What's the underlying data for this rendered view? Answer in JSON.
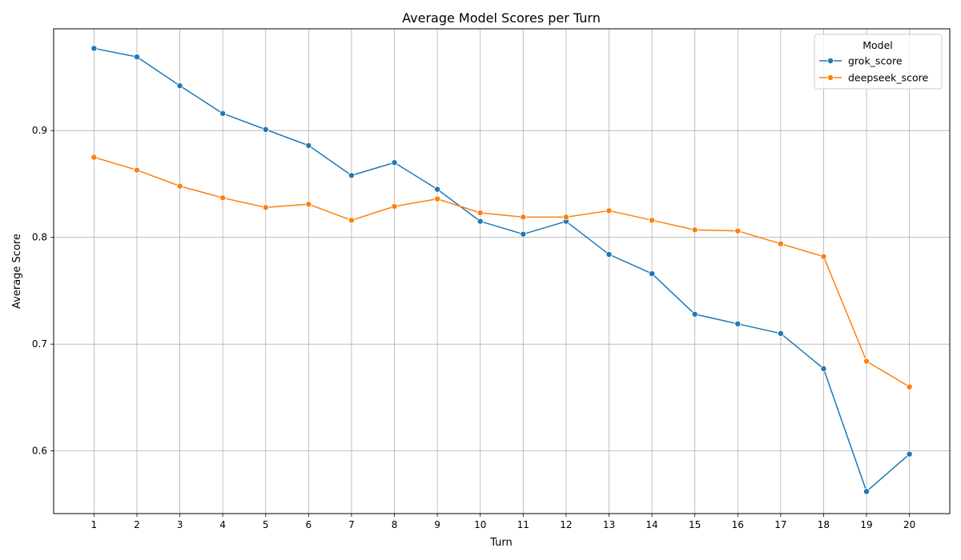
{
  "chart_data": {
    "type": "line",
    "title": "Average Model Scores per Turn",
    "xlabel": "Turn",
    "ylabel": "Average Score",
    "x": [
      1,
      2,
      3,
      4,
      5,
      6,
      7,
      8,
      9,
      10,
      11,
      12,
      13,
      14,
      15,
      16,
      17,
      18,
      19,
      20
    ],
    "xlim": [
      0.06,
      20.94
    ],
    "ylim": [
      0.5413,
      0.9953
    ],
    "yticks": [
      0.6,
      0.7,
      0.8,
      0.9
    ],
    "grid": true,
    "legend": {
      "title": "Model",
      "placement": "top-right"
    },
    "series": [
      {
        "name": "grok_score",
        "color": "#1f77b4",
        "values": [
          0.977,
          0.969,
          0.942,
          0.916,
          0.901,
          0.886,
          0.858,
          0.87,
          0.845,
          0.815,
          0.803,
          0.815,
          0.784,
          0.766,
          0.728,
          0.719,
          0.71,
          0.677,
          0.562,
          0.597
        ]
      },
      {
        "name": "deepseek_score",
        "color": "#ff7f0e",
        "values": [
          0.875,
          0.863,
          0.848,
          0.837,
          0.828,
          0.831,
          0.816,
          0.829,
          0.836,
          0.823,
          0.819,
          0.819,
          0.825,
          0.816,
          0.807,
          0.806,
          0.794,
          0.782,
          0.684,
          0.66
        ]
      }
    ]
  }
}
